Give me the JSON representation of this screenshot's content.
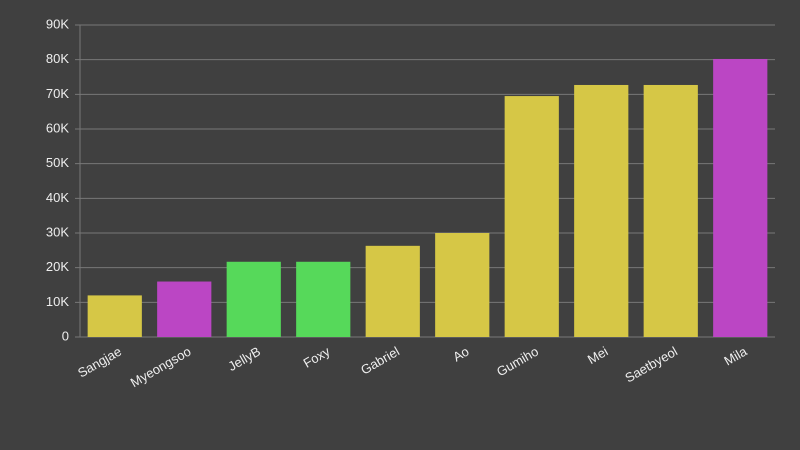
{
  "chart_data": {
    "type": "bar",
    "categories": [
      "Sangjae",
      "Myeongsoo",
      "JellyB",
      "Foxy",
      "Gabriel",
      "Ao",
      "Gumiho",
      "Mei",
      "Saetbyeol",
      "Mila"
    ],
    "values": [
      12000,
      16000,
      21700,
      21700,
      26300,
      30000,
      69500,
      72700,
      72700,
      80200
    ],
    "colors": [
      "#d6c746",
      "#bb46c4",
      "#56d95a",
      "#56d95a",
      "#d6c746",
      "#d6c746",
      "#d6c746",
      "#d6c746",
      "#d6c746",
      "#bb46c4"
    ],
    "ylim": [
      0,
      90000
    ],
    "yticks": [
      0,
      {
        "value": 10000,
        "label": "10K"
      },
      {
        "value": 20000,
        "label": "20K"
      },
      {
        "value": 30000,
        "label": "30K"
      },
      {
        "value": 40000,
        "label": "40K"
      },
      {
        "value": 50000,
        "label": "50K"
      },
      {
        "value": 60000,
        "label": "60K"
      },
      {
        "value": 70000,
        "label": "70K"
      },
      {
        "value": 80000,
        "label": "80K"
      },
      {
        "value": 90000,
        "label": "90K"
      }
    ],
    "grid": true
  }
}
